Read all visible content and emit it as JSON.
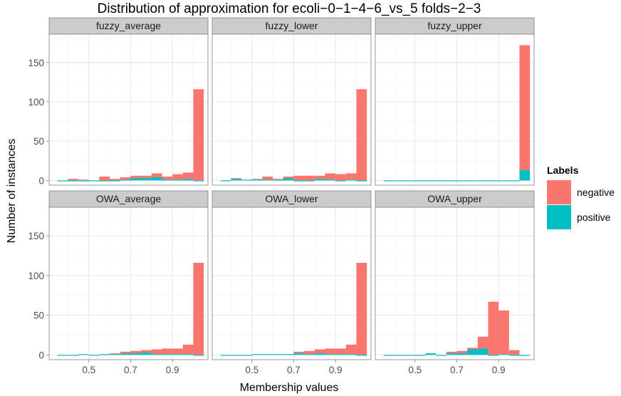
{
  "chart_data": {
    "type": "bar",
    "subtype": "faceted-histogram-stacked",
    "title": "Distribution of approximation for ecoli−0−1−4−6_vs_5 folds−2−3",
    "xlabel": "Membership values",
    "ylabel": "Number of instances",
    "xlim": [
      0.31,
      1.07
    ],
    "ylim": [
      -6,
      186
    ],
    "xticks": [
      0.5,
      0.7,
      0.9
    ],
    "xtick_labels": [
      "0.5",
      "0.7",
      "0.9"
    ],
    "yticks": [
      0,
      50,
      100,
      150
    ],
    "ytick_labels": [
      "0",
      "50",
      "100",
      "150"
    ],
    "grid": true,
    "legend": {
      "title": "Labels",
      "position": "right",
      "entries": [
        {
          "label": "negative",
          "color": "#F8766D"
        },
        {
          "label": "positive",
          "color": "#00BFC4"
        }
      ]
    },
    "series_colors": {
      "negative": "#F8766D",
      "positive": "#00BFC4"
    },
    "bin_width": 0.05,
    "bin_starts": [
      0.35,
      0.4,
      0.45,
      0.5,
      0.55,
      0.6,
      0.65,
      0.7,
      0.75,
      0.8,
      0.85,
      0.9,
      0.95,
      1.0
    ],
    "panels": [
      {
        "name": "fuzzy_average",
        "negative": [
          0,
          2,
          1,
          0,
          5,
          2,
          3,
          3,
          3,
          5,
          4,
          7,
          8,
          116
        ],
        "positive": [
          0,
          0,
          0,
          0,
          0,
          0,
          1,
          3,
          3,
          4,
          1,
          1,
          2,
          0
        ]
      },
      {
        "name": "fuzzy_lower",
        "negative": [
          0,
          1,
          0,
          1,
          4,
          1,
          2,
          6,
          6,
          4,
          8,
          8,
          8,
          116
        ],
        "positive": [
          0,
          2,
          1,
          1,
          1,
          1,
          3,
          0,
          0,
          2,
          1,
          0,
          1,
          0
        ]
      },
      {
        "name": "fuzzy_upper",
        "negative": [
          0,
          0,
          0,
          0,
          0,
          0,
          0,
          0,
          0,
          0,
          0,
          0,
          0,
          159
        ],
        "positive": [
          0,
          0,
          0,
          0,
          0,
          0,
          0,
          0,
          0,
          0,
          0,
          0,
          0,
          13
        ]
      },
      {
        "name": "OWA_average",
        "negative": [
          0,
          0,
          0,
          0,
          0,
          1,
          2,
          3,
          3,
          6,
          7,
          7,
          12,
          116
        ],
        "positive": [
          0,
          0,
          1,
          0,
          1,
          1,
          2,
          2,
          3,
          1,
          1,
          1,
          1,
          0
        ]
      },
      {
        "name": "OWA_lower",
        "negative": [
          0,
          0,
          0,
          0,
          0,
          0,
          0,
          2,
          4,
          5,
          7,
          7,
          12,
          116
        ],
        "positive": [
          0,
          0,
          0,
          1,
          1,
          1,
          1,
          2,
          1,
          2,
          1,
          1,
          1,
          0
        ]
      },
      {
        "name": "OWA_upper",
        "negative": [
          0,
          0,
          0,
          0,
          0,
          0,
          2,
          3,
          2,
          15,
          67,
          55,
          6,
          0
        ],
        "positive": [
          0,
          0,
          0,
          0,
          2,
          0,
          2,
          2,
          7,
          8,
          0,
          1,
          0,
          0
        ]
      }
    ]
  }
}
